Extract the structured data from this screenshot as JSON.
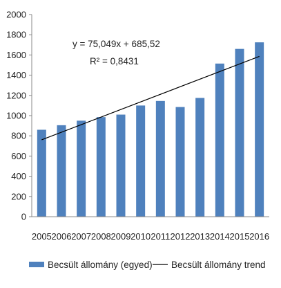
{
  "chart_data": {
    "type": "bar",
    "categories": [
      "2005",
      "2006",
      "2007",
      "2008",
      "2009",
      "2010",
      "2011",
      "2012",
      "2013",
      "2014",
      "2015",
      "2016"
    ],
    "series": [
      {
        "name": "Becsült állomány (egyed)",
        "values": [
          860,
          905,
          950,
          985,
          1010,
          1100,
          1145,
          1085,
          1175,
          1515,
          1660,
          1725
        ],
        "color": "#4F81BD"
      }
    ],
    "trendline": {
      "name": "Becsült állomány trend",
      "slope": 75.049,
      "intercept": 685.52,
      "color": "#000000",
      "equation": "y = 75,049x + 685,52",
      "r_squared": "R² = 0,8431"
    },
    "ylim": [
      0,
      2000
    ],
    "yticks": [
      "0",
      "200",
      "400",
      "600",
      "800",
      "1000",
      "1200",
      "1400",
      "1600",
      "1800",
      "2000"
    ],
    "grid": false,
    "legend_position": "bottom"
  }
}
